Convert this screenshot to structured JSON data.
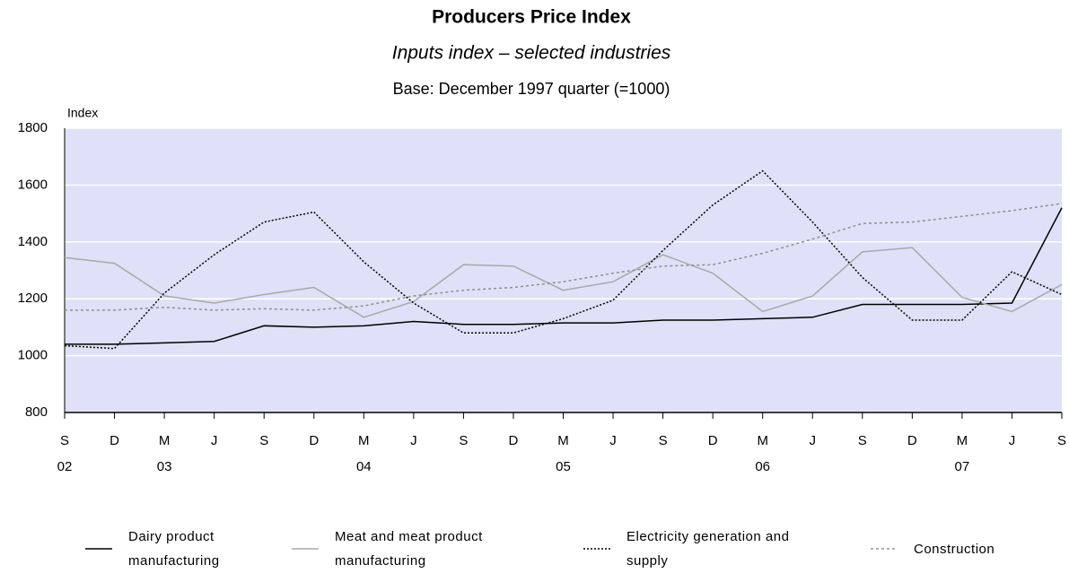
{
  "chart_data": {
    "type": "line",
    "title": "Producers Price Index",
    "subtitle": "Inputs index – selected industries",
    "base_note": "Base: December 1997 quarter (=1000)",
    "y_label": "Index",
    "categories": [
      "S",
      "D",
      "M",
      "J",
      "S",
      "D",
      "M",
      "J",
      "S",
      "D",
      "M",
      "J",
      "S",
      "D",
      "M",
      "J",
      "S",
      "D",
      "M",
      "J",
      "S"
    ],
    "category_years": [
      "02",
      null,
      "03",
      null,
      null,
      null,
      "04",
      null,
      null,
      null,
      "05",
      null,
      null,
      null,
      "06",
      null,
      null,
      null,
      "07",
      null,
      null
    ],
    "ylim": [
      800,
      1800
    ],
    "yticks": [
      800,
      1000,
      1200,
      1400,
      1600,
      1800
    ],
    "grid": true,
    "background": "#e0e0f8",
    "series": [
      {
        "name": "Dairy product manufacturing",
        "color": "#000000",
        "dash": "solid",
        "values": [
          1040,
          1040,
          1045,
          1050,
          1105,
          1100,
          1105,
          1120,
          1110,
          1110,
          1115,
          1115,
          1125,
          1125,
          1130,
          1135,
          1180,
          1180,
          1180,
          1185,
          1520
        ]
      },
      {
        "name": "Meat and meat product manufacturing",
        "color": "#a8a8a8",
        "dash": "solid",
        "values": [
          1345,
          1325,
          1210,
          1185,
          1215,
          1240,
          1135,
          1190,
          1320,
          1315,
          1230,
          1260,
          1355,
          1290,
          1155,
          1210,
          1365,
          1380,
          1205,
          1155,
          1250
        ]
      },
      {
        "name": "Electricity generation and supply",
        "color": "#000000",
        "dash": "dotted",
        "values": [
          1035,
          1025,
          1220,
          1355,
          1470,
          1505,
          1330,
          1185,
          1080,
          1080,
          1130,
          1195,
          1370,
          1530,
          1650,
          1470,
          1275,
          1125,
          1125,
          1295,
          1215
        ]
      },
      {
        "name": "Construction",
        "color": "#909090",
        "dash": "dashed",
        "values": [
          1160,
          1160,
          1170,
          1160,
          1165,
          1160,
          1175,
          1210,
          1230,
          1240,
          1260,
          1290,
          1315,
          1320,
          1360,
          1410,
          1465,
          1470,
          1490,
          1510,
          1535
        ]
      }
    ]
  }
}
